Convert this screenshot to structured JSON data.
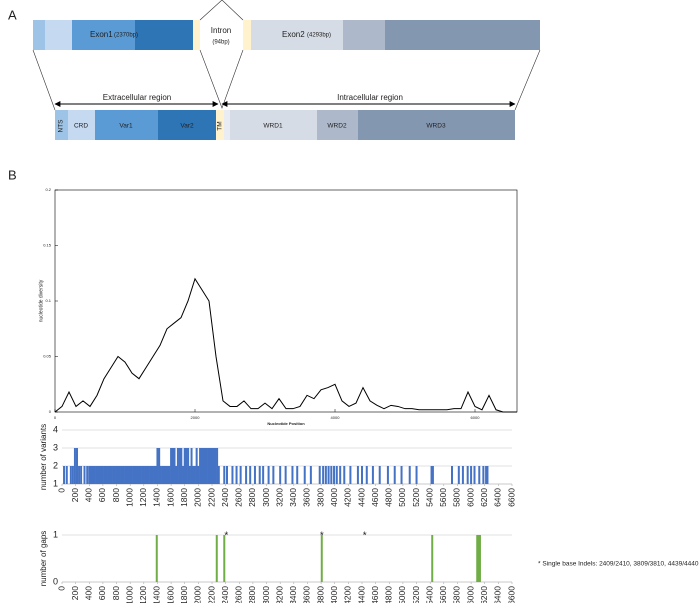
{
  "diagram": {
    "panel_a": "A",
    "panel_b": "B",
    "gene": {
      "exon1": "Exon1",
      "exon1_len": "(2370bp)",
      "intron": "Intron",
      "intron_len": "(94bp)",
      "exon2": "Exon2",
      "exon2_len": "(4293bp)"
    },
    "regions": [
      "Extracellular region",
      "Intracellular region"
    ],
    "domains": [
      "NTS",
      "CRD",
      "Var1",
      "Var2",
      "TM",
      "WRD1",
      "WRD2",
      "WRD3"
    ]
  },
  "chart_data": [
    {
      "type": "line",
      "ylabel": "nucleotide diversity",
      "xlabel": "Nucleotide Position",
      "color": "#000000",
      "x": [
        0,
        100,
        200,
        300,
        400,
        500,
        600,
        700,
        800,
        900,
        1000,
        1100,
        1200,
        1300,
        1400,
        1500,
        1600,
        1700,
        1800,
        1900,
        2000,
        2100,
        2200,
        2300,
        2400,
        2500,
        2600,
        2700,
        2800,
        2900,
        3000,
        3100,
        3200,
        3300,
        3400,
        3500,
        3600,
        3700,
        3800,
        3900,
        4000,
        4100,
        4200,
        4300,
        4400,
        4500,
        4600,
        4700,
        4800,
        4900,
        5000,
        5100,
        5200,
        5300,
        5400,
        5500,
        5600,
        5700,
        5800,
        5900,
        6000,
        6100,
        6200,
        6300,
        6400,
        6500,
        6600
      ],
      "values": [
        0,
        0.005,
        0.018,
        0.005,
        0.01,
        0.005,
        0.015,
        0.03,
        0.04,
        0.05,
        0.045,
        0.035,
        0.03,
        0.04,
        0.05,
        0.06,
        0.075,
        0.08,
        0.085,
        0.1,
        0.12,
        0.11,
        0.1,
        0.05,
        0.01,
        0.005,
        0.005,
        0.01,
        0.003,
        0.003,
        0.008,
        0.003,
        0.012,
        0.003,
        0.003,
        0.005,
        0.015,
        0.012,
        0.02,
        0.022,
        0.025,
        0.01,
        0.005,
        0.008,
        0.022,
        0.01,
        0.006,
        0.003,
        0.006,
        0.005,
        0.003,
        0.003,
        0.002,
        0.002,
        0.002,
        0.002,
        0.002,
        0.003,
        0.003,
        0.018,
        0.005,
        0.002,
        0.015,
        0.002,
        0,
        0,
        0
      ],
      "xlim": [
        0,
        6600
      ],
      "xticks": [
        0,
        2000,
        4000,
        6000
      ],
      "ylim": [
        0,
        0.2
      ],
      "yticks": [
        0,
        0.05,
        0.1,
        0.15,
        0.2
      ]
    },
    {
      "type": "spike",
      "ylabel": "number of variants",
      "color": "#4472c4",
      "x": [
        30,
        70,
        130,
        160,
        190,
        220,
        250,
        280,
        330,
        370,
        400,
        425,
        450,
        475,
        500,
        525,
        550,
        575,
        600,
        625,
        650,
        675,
        700,
        725,
        750,
        775,
        800,
        825,
        850,
        875,
        900,
        925,
        950,
        975,
        1000,
        1025,
        1050,
        1075,
        1100,
        1125,
        1150,
        1175,
        1200,
        1225,
        1250,
        1275,
        1300,
        1325,
        1350,
        1375,
        1400,
        1425,
        1450,
        1475,
        1500,
        1525,
        1550,
        1575,
        1600,
        1625,
        1650,
        1675,
        1700,
        1725,
        1750,
        1775,
        1800,
        1825,
        1850,
        1875,
        1900,
        1925,
        1950,
        1975,
        2000,
        2025,
        2050,
        2075,
        2100,
        2125,
        2150,
        2175,
        2200,
        2225,
        2250,
        2275,
        2300,
        2380,
        2420,
        2500,
        2560,
        2620,
        2700,
        2760,
        2830,
        2900,
        2950,
        3030,
        3100,
        3200,
        3280,
        3380,
        3450,
        3560,
        3650,
        3780,
        3830,
        3870,
        3910,
        3950,
        3990,
        4030,
        4080,
        4140,
        4230,
        4340,
        4400,
        4470,
        4560,
        4660,
        4780,
        4880,
        4980,
        5100,
        5200,
        5420,
        5440,
        5720,
        5820,
        5880,
        5950,
        6000,
        6050,
        6120,
        6180,
        6220,
        6240
      ],
      "values": [
        2,
        2,
        2,
        2,
        3,
        3,
        2,
        2,
        2,
        2,
        2,
        2,
        2,
        2,
        2,
        2,
        2,
        2,
        2,
        2,
        2,
        2,
        2,
        2,
        2,
        2,
        2,
        2,
        2,
        2,
        2,
        2,
        2,
        2,
        2,
        2,
        2,
        2,
        2,
        2,
        2,
        2,
        2,
        2,
        2,
        2,
        2,
        2,
        2,
        2,
        3,
        3,
        2,
        2,
        2,
        2,
        2,
        2,
        3,
        3,
        3,
        2,
        3,
        3,
        3,
        2,
        3,
        3,
        3,
        2,
        3,
        2,
        2,
        3,
        2,
        3,
        3,
        3,
        3,
        3,
        3,
        3,
        3,
        3,
        3,
        3,
        2,
        2,
        2,
        2,
        2,
        2,
        2,
        2,
        2,
        2,
        2,
        2,
        2,
        2,
        2,
        2,
        2,
        2,
        2,
        2,
        2,
        2,
        2,
        2,
        2,
        2,
        2,
        2,
        2,
        2,
        2,
        2,
        2,
        2,
        2,
        2,
        2,
        2,
        2,
        2,
        2,
        2,
        2,
        2,
        2,
        2,
        2,
        2,
        2,
        2,
        2
      ],
      "xlim": [
        0,
        6600
      ],
      "xticks": [
        0,
        200,
        400,
        600,
        800,
        1000,
        1200,
        1400,
        1600,
        1800,
        2000,
        2200,
        2400,
        2600,
        2800,
        3000,
        3200,
        3400,
        3600,
        3800,
        4000,
        4200,
        4400,
        4600,
        4800,
        5000,
        5200,
        5400,
        5600,
        5800,
        6000,
        6200,
        6400,
        6600
      ],
      "ylim": [
        1,
        4
      ],
      "yticks": [
        1,
        2,
        3,
        4
      ],
      "grid": true
    },
    {
      "type": "spike",
      "ylabel": "number of gaps",
      "color": "#70ad47",
      "x": [
        1390,
        2270,
        2380,
        3810,
        5430,
        6090,
        6110,
        6130
      ],
      "values": [
        1,
        1,
        1,
        1,
        1,
        1,
        1,
        1
      ],
      "markers": {
        "x": [
          2410,
          3810,
          4440
        ],
        "label": "*"
      },
      "note": "* Single base Indels: 2409/2410, 3809/3810, 4439/4440",
      "xlim": [
        0,
        6600
      ],
      "xticks": [
        0,
        200,
        400,
        600,
        800,
        1000,
        1200,
        1400,
        1600,
        1800,
        2000,
        2200,
        2400,
        2600,
        2800,
        3000,
        3200,
        3400,
        3600,
        3800,
        4000,
        4200,
        4400,
        4600,
        4800,
        5000,
        5200,
        5400,
        5600,
        5800,
        6000,
        6200,
        6400,
        6600
      ],
      "ylim": [
        0,
        1
      ],
      "yticks": [
        0,
        1
      ],
      "grid": true
    }
  ]
}
